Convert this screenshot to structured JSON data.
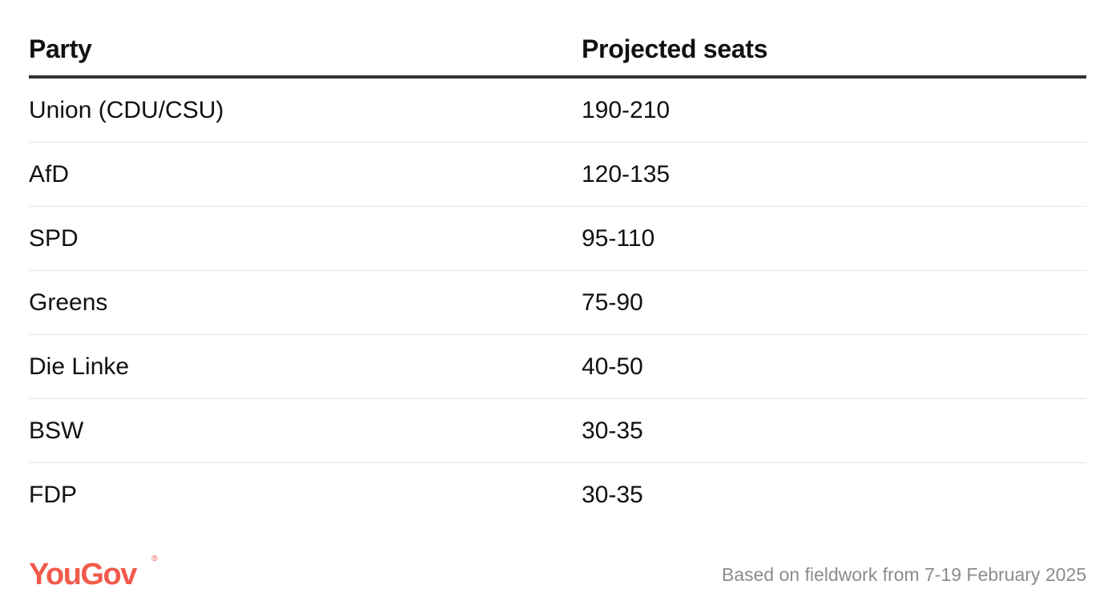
{
  "chart_data": {
    "type": "table",
    "columns": [
      "Party",
      "Projected seats"
    ],
    "rows": [
      {
        "party": "Union (CDU/CSU)",
        "seats": "190-210"
      },
      {
        "party": "AfD",
        "seats": "120-135"
      },
      {
        "party": "SPD",
        "seats": "95-110"
      },
      {
        "party": "Greens",
        "seats": "75-90"
      },
      {
        "party": "Die Linke",
        "seats": "40-50"
      },
      {
        "party": "BSW",
        "seats": "30-35"
      },
      {
        "party": "FDP",
        "seats": "30-35"
      }
    ]
  },
  "footer": {
    "logo_text": "YouGov",
    "logo_mark": "®",
    "note": "Based on fieldwork from 7-19 February 2025"
  },
  "colors": {
    "brand": "#f05a4a",
    "header_rule": "#333333",
    "row_rule": "#e3e3e3",
    "note_text": "#8c8c8c"
  }
}
